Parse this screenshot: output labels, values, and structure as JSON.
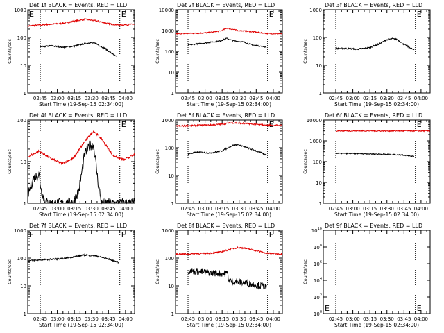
{
  "colors": {
    "events": "#000000",
    "lld": "#e00000",
    "axis": "#000000"
  },
  "x_ticks": [
    "02:45",
    "03:00",
    "03:15",
    "03:30",
    "03:45",
    "04:00"
  ],
  "x_label": "Start Time (19-Sep-15 02:34:00)",
  "y_label": "Counts/sec",
  "marker": "E",
  "chart_data": [
    {
      "type": "line",
      "title": "Det 1f BLACK = Events, RED = LLD",
      "xlim": [
        0,
        94
      ],
      "xscale": "minutes",
      "yscale": "log",
      "ylim_exp": [
        0,
        3
      ],
      "y_ticks": [
        "1",
        "10",
        "100",
        "1000"
      ],
      "eclipse_lines": [
        11,
        81
      ],
      "e_markers": [
        0,
        81
      ],
      "series": [
        {
          "role": "lld",
          "shape": "bump",
          "t": [
            0,
            10,
            20,
            30,
            40,
            50,
            60,
            70,
            80,
            94
          ],
          "v": [
            260,
            280,
            300,
            320,
            380,
            450,
            400,
            320,
            280,
            300
          ]
        },
        {
          "role": "events",
          "shape": "flat",
          "t": [
            11,
            20,
            30,
            40,
            50,
            55,
            60,
            68,
            78
          ],
          "v": [
            45,
            50,
            45,
            48,
            60,
            65,
            60,
            40,
            20
          ]
        }
      ]
    },
    {
      "type": "line",
      "title": "Det 2f BLACK = Events, RED = LLD",
      "xlim": [
        0,
        94
      ],
      "xscale": "minutes",
      "yscale": "log",
      "ylim_exp": [
        0,
        4
      ],
      "y_ticks": [
        "1",
        "10",
        "100",
        "1000",
        "10000"
      ],
      "eclipse_lines": [
        11,
        81
      ],
      "e_markers": [
        81
      ],
      "series": [
        {
          "role": "lld",
          "shape": "bump",
          "t": [
            0,
            10,
            20,
            30,
            40,
            45,
            50,
            55,
            60,
            70,
            80,
            94
          ],
          "v": [
            700,
            720,
            740,
            800,
            950,
            1300,
            1150,
            1000,
            950,
            850,
            720,
            700
          ]
        },
        {
          "role": "events",
          "shape": "flat",
          "t": [
            11,
            20,
            30,
            40,
            45,
            50,
            55,
            60,
            68,
            80
          ],
          "v": [
            200,
            230,
            270,
            320,
            420,
            330,
            300,
            280,
            200,
            160
          ]
        }
      ]
    },
    {
      "type": "line",
      "title": "Det 3f BLACK = Events, RED = LLD",
      "xlim": [
        0,
        94
      ],
      "xscale": "minutes",
      "yscale": "log",
      "ylim_exp": [
        0,
        3
      ],
      "y_ticks": [
        "1",
        "10",
        "100",
        "1000"
      ],
      "eclipse_lines": [
        11,
        81
      ],
      "e_markers": [
        81
      ],
      "series": [
        {
          "role": "events",
          "shape": "flat",
          "t": [
            11,
            20,
            30,
            40,
            50,
            55,
            60,
            65,
            70,
            80
          ],
          "v": [
            40,
            40,
            38,
            42,
            60,
            80,
            90,
            85,
            60,
            35
          ]
        }
      ]
    },
    {
      "type": "line",
      "title": "Det 4f BLACK = Events, RED = LLD",
      "xlim": [
        0,
        94
      ],
      "xscale": "minutes",
      "yscale": "log",
      "ylim_exp": [
        0,
        2
      ],
      "y_ticks": [
        "1",
        "10",
        "100"
      ],
      "eclipse_lines": [
        11,
        81
      ],
      "e_markers": [
        81
      ],
      "series": [
        {
          "role": "lld",
          "shape": "bump",
          "t": [
            0,
            10,
            20,
            30,
            40,
            50,
            58,
            65,
            75,
            85,
            94
          ],
          "v": [
            13,
            18,
            12,
            9,
            12,
            30,
            55,
            35,
            14,
            11,
            15
          ]
        },
        {
          "role": "events",
          "shape": "noisy",
          "t": [
            0,
            5,
            10,
            12,
            15,
            18,
            20,
            35,
            40,
            45,
            50,
            55,
            58,
            62,
            65,
            94
          ],
          "v": [
            1.5,
            4,
            5,
            2,
            1.1,
            1,
            1,
            1,
            1.1,
            2,
            15,
            25,
            25,
            3,
            1,
            1
          ]
        }
      ]
    },
    {
      "type": "line",
      "title": "Det 5f BLACK = Events, RED = LLD",
      "xlim": [
        0,
        94
      ],
      "xscale": "minutes",
      "yscale": "log",
      "ylim_exp": [
        0,
        3
      ],
      "y_ticks": [
        "1",
        "10",
        "100",
        "1000"
      ],
      "eclipse_lines": [
        11,
        81
      ],
      "e_markers": [
        81
      ],
      "series": [
        {
          "role": "lld",
          "shape": "bump",
          "t": [
            0,
            10,
            20,
            30,
            40,
            50,
            60,
            70,
            80,
            94
          ],
          "v": [
            600,
            620,
            640,
            660,
            700,
            800,
            750,
            700,
            650,
            640
          ]
        },
        {
          "role": "events",
          "shape": "flat",
          "t": [
            11,
            20,
            30,
            40,
            50,
            55,
            60,
            70,
            80
          ],
          "v": [
            60,
            70,
            65,
            75,
            120,
            130,
            110,
            80,
            55
          ]
        }
      ]
    },
    {
      "type": "line",
      "title": "Det 6f BLACK = Events, RED = LLD",
      "xlim": [
        0,
        94
      ],
      "xscale": "minutes",
      "yscale": "log",
      "ylim_exp": [
        0,
        4
      ],
      "y_ticks": [
        "1",
        "10",
        "100",
        "1000",
        "10000"
      ],
      "eclipse_lines": [
        11,
        81
      ],
      "e_markers": [
        81
      ],
      "series": [
        {
          "role": "lld",
          "shape": "flat",
          "t": [
            11,
            30,
            50,
            70,
            94
          ],
          "v": [
            3000,
            3000,
            3000,
            3000,
            3000
          ]
        },
        {
          "role": "events",
          "shape": "flat",
          "t": [
            11,
            30,
            50,
            70,
            80
          ],
          "v": [
            250,
            245,
            230,
            210,
            180
          ]
        }
      ]
    },
    {
      "type": "line",
      "title": "Det 7f BLACK = Events, RED = LLD",
      "xlim": [
        0,
        94
      ],
      "xscale": "minutes",
      "yscale": "log",
      "ylim_exp": [
        0,
        3
      ],
      "y_ticks": [
        "1",
        "10",
        "100",
        "1000"
      ],
      "eclipse_lines": [
        11,
        81
      ],
      "e_markers": [
        0,
        81
      ],
      "series": [
        {
          "role": "events",
          "shape": "flat",
          "t": [
            0,
            10,
            20,
            30,
            40,
            50,
            60,
            70,
            80
          ],
          "v": [
            80,
            85,
            90,
            95,
            110,
            130,
            120,
            95,
            70
          ]
        }
      ]
    },
    {
      "type": "line",
      "title": "Det 8f BLACK = Events, RED = LLD",
      "xlim": [
        0,
        94
      ],
      "xscale": "minutes",
      "yscale": "log",
      "ylim_exp": [
        0,
        3
      ],
      "y_ticks": [
        "1",
        "10",
        "100",
        "1000"
      ],
      "eclipse_lines": [
        11,
        81
      ],
      "e_markers": [
        81
      ],
      "series": [
        {
          "role": "lld",
          "shape": "bump",
          "t": [
            0,
            10,
            20,
            30,
            40,
            50,
            55,
            60,
            70,
            80,
            94
          ],
          "v": [
            140,
            140,
            145,
            150,
            165,
            220,
            240,
            230,
            190,
            150,
            140
          ]
        },
        {
          "role": "events",
          "shape": "noisy",
          "t": [
            11,
            20,
            30,
            40,
            46,
            47,
            55,
            65,
            75,
            80
          ],
          "v": [
            35,
            32,
            30,
            28,
            28,
            15,
            14,
            12,
            10,
            9
          ]
        }
      ]
    },
    {
      "type": "line",
      "title": "Det 9f BLACK = Events, RED = LLD",
      "xlim": [
        0,
        94
      ],
      "xscale": "minutes",
      "yscale": "log",
      "ylim_exp": [
        0,
        10
      ],
      "y_ticks": [
        "10^0",
        "10^2",
        "10^4",
        "10^6",
        "10^8",
        "10^10"
      ],
      "eclipse_lines": [
        11,
        81
      ],
      "e_markers_bottom": [
        0,
        81
      ],
      "series": []
    }
  ]
}
